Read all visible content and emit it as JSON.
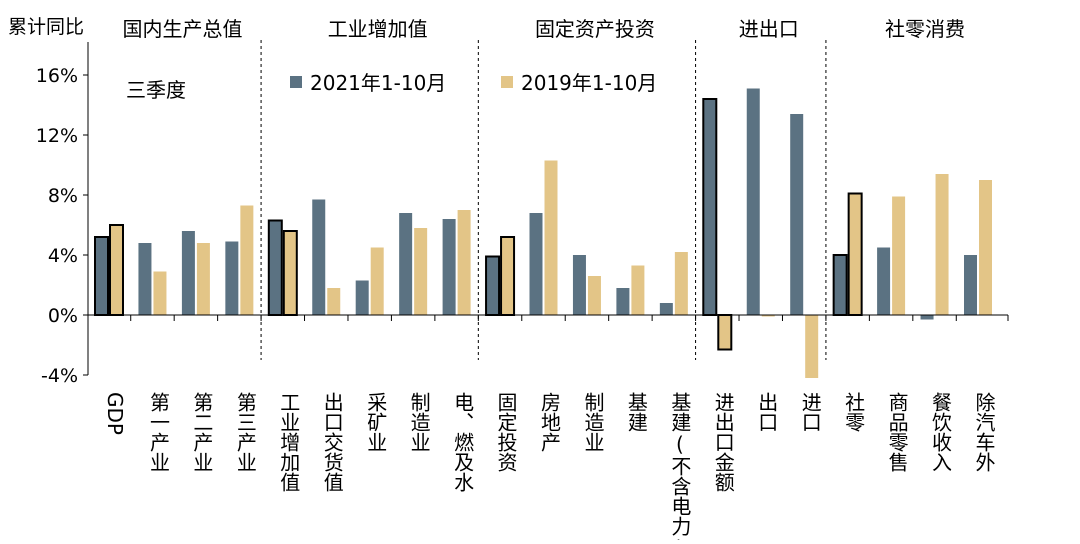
{
  "chart_data": {
    "type": "bar",
    "ylabel": "累计同比",
    "ylim": [
      -4,
      18
    ],
    "yticks": [
      -4,
      0,
      4,
      8,
      12,
      16
    ],
    "ytick_suffix": "%",
    "annotation": "三季度",
    "groups": [
      {
        "label": "国内生产总值",
        "start": 0,
        "end": 3
      },
      {
        "label": "工业增加值",
        "start": 4,
        "end": 8
      },
      {
        "label": "固定资产投资",
        "start": 9,
        "end": 13
      },
      {
        "label": "进出口",
        "start": 14,
        "end": 16
      },
      {
        "label": "社零消费",
        "start": 17,
        "end": 20
      }
    ],
    "categories": [
      "GDP",
      "第一产业",
      "第二产业",
      "第三产业",
      "工业增加值",
      "出口交货值",
      "采矿业",
      "制造业",
      "电、燃及水",
      "固定投资",
      "房地产",
      "制造业",
      "基建",
      "基建(不含电力)",
      "进出口金额",
      "出口",
      "进口",
      "社零",
      "商品零售",
      "餐饮收入",
      "除汽车外"
    ],
    "highlighted": [
      0,
      4,
      9,
      14,
      17
    ],
    "series": [
      {
        "name": "2021年1-10月",
        "color": "#5b7282",
        "values": [
          5.2,
          4.8,
          5.6,
          4.9,
          6.3,
          7.7,
          2.3,
          6.8,
          6.4,
          3.9,
          6.8,
          4.0,
          1.8,
          0.8,
          14.4,
          15.1,
          13.4,
          4.0,
          4.5,
          -0.3,
          4.0
        ]
      },
      {
        "name": "2019年1-10月",
        "color": "#e3c587",
        "values": [
          6.0,
          2.9,
          4.8,
          7.3,
          5.6,
          1.8,
          4.5,
          5.8,
          7.0,
          5.2,
          10.3,
          2.6,
          3.3,
          4.2,
          -2.3,
          -0.1,
          -4.2,
          8.1,
          7.9,
          9.4,
          9.0
        ]
      }
    ]
  }
}
